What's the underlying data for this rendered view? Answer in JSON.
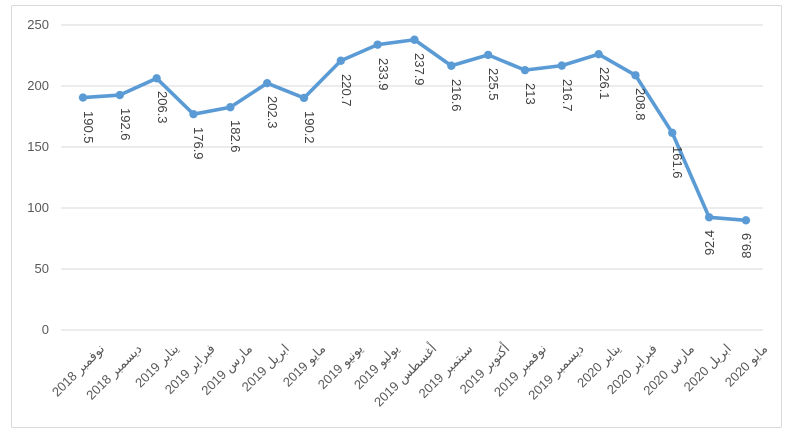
{
  "chart_data": {
    "type": "line",
    "title": "",
    "xlabel": "",
    "ylabel": "",
    "legend": "none",
    "grid": true,
    "ylim": [
      0,
      250
    ],
    "y_ticks": [
      "0",
      "50",
      "100",
      "150",
      "200",
      "250"
    ],
    "y_tick_values": [
      0,
      50,
      100,
      150,
      200,
      250
    ],
    "categories": [
      "نوفمبر 2018",
      "ديسمبر 2018",
      "يناير 2019",
      "فبراير 2019",
      "مارس 2019",
      "ابريل 2019",
      "مايو 2019",
      "يونيو 2019",
      "يوليو 2019",
      "أغسطس 2019",
      "سبتمبر 2019",
      "أكتوبر 2019",
      "نوفمبر 2019",
      "ديسمبر 2019",
      "يناير 2020",
      "فبراير 2020",
      "مارس 2020",
      "ابريل 2020",
      "مايو 2020"
    ],
    "values": [
      190.5,
      192.6,
      206.3,
      176.9,
      182.6,
      202.3,
      190.2,
      220.7,
      233.9,
      237.9,
      216.6,
      225.5,
      213,
      216.7,
      226.1,
      208.8,
      161.6,
      92.4,
      89.9
    ],
    "data_labels": [
      "190.5",
      "192.6",
      "206.3",
      "176.9",
      "182.6",
      "202.3",
      "190.2",
      "220.7",
      "233.9",
      "237.9",
      "216.6",
      "225.5",
      "213",
      "216.7",
      "226.1",
      "208.8",
      "161.6",
      "92.4",
      "89.9"
    ],
    "data_label_rotation_deg": 90,
    "flipped_data_label_indices": [
      17,
      18
    ],
    "colors": {
      "line": "#5b9bd5",
      "marker": "#5b9bd5",
      "gridline": "#d9d9d9",
      "frame_border": "#d9d9d9",
      "data_label": "#3f3f3f",
      "axis_label": "#595959",
      "background": "#ffffff"
    }
  }
}
